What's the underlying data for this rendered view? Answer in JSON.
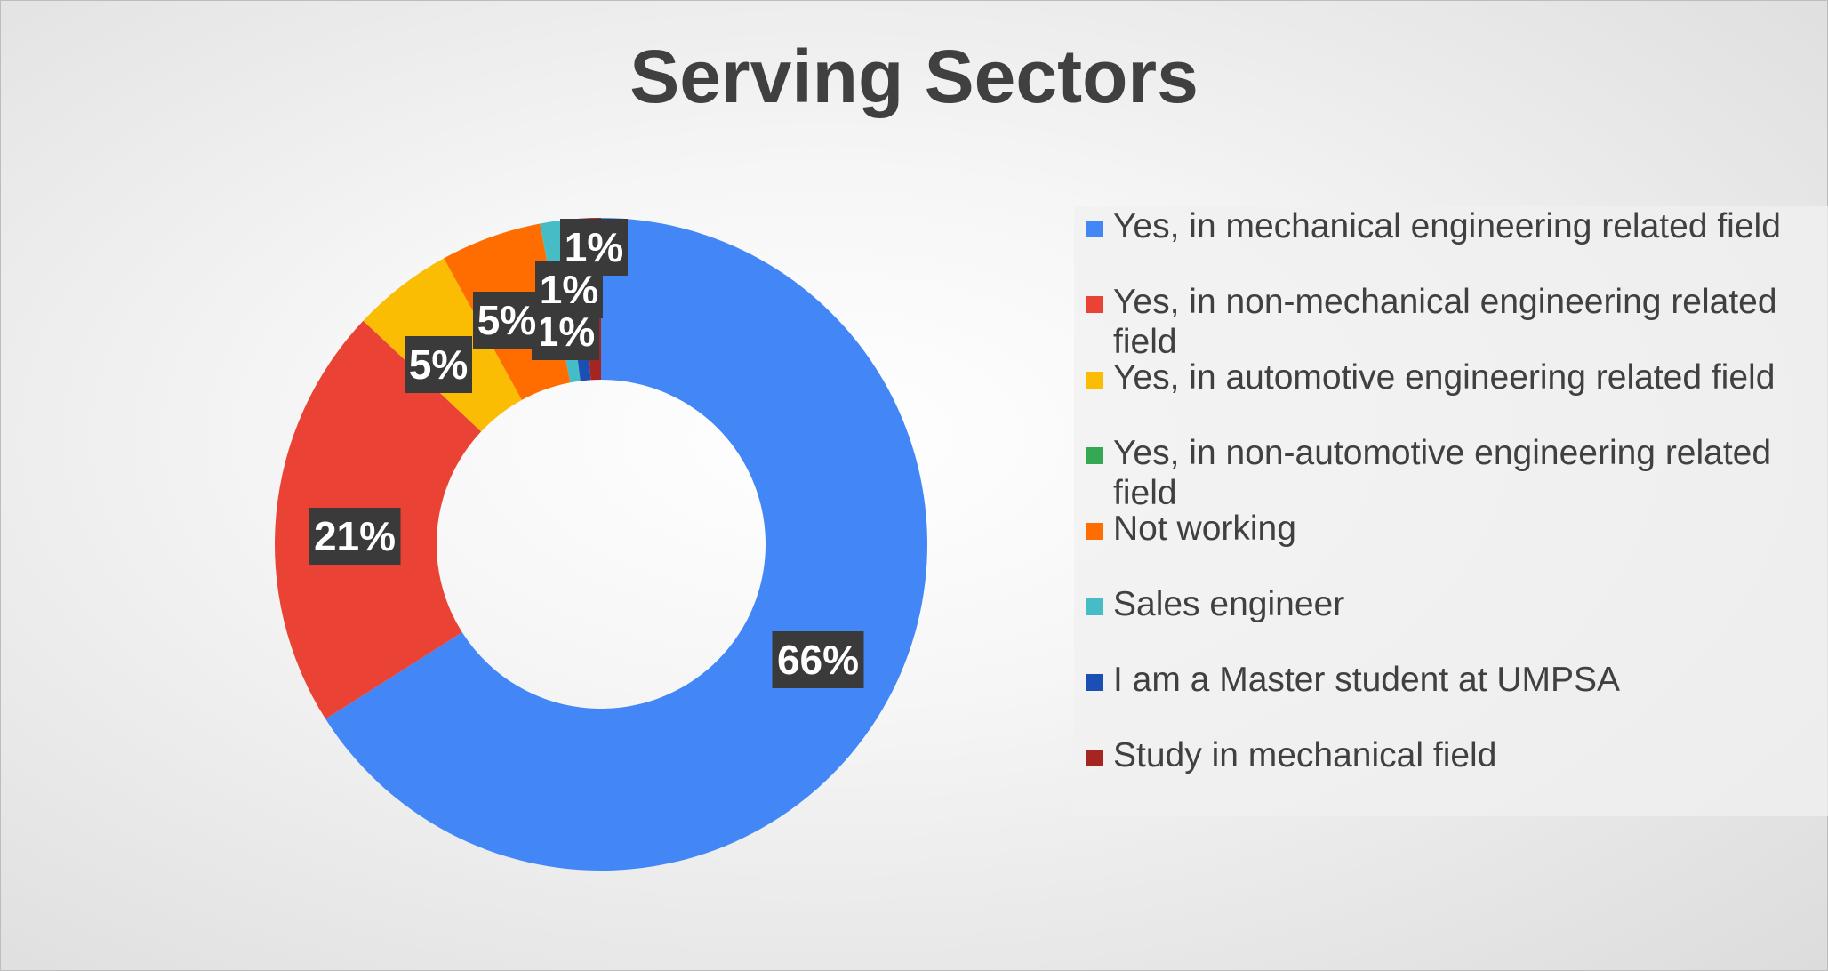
{
  "chart_data": {
    "type": "pie",
    "title": "Serving Sectors",
    "donut": true,
    "legend_position": "right",
    "categories": [
      "Yes, in mechanical engineering related field",
      "Yes, in non-mechanical engineering related field",
      "Yes, in automotive engineering related field",
      "Yes, in non-automotive engineering related field",
      "Not working",
      "Sales engineer",
      "I am a Master student at UMPSA",
      "Study in mechanical field"
    ],
    "values": [
      66,
      21,
      5,
      0,
      5,
      1,
      1,
      1
    ],
    "labels": [
      "66%",
      "21%",
      "5%",
      "",
      "5%",
      "1%",
      "1%",
      "1%"
    ],
    "colors": [
      "#4287f5",
      "#ea4335",
      "#fbbc04",
      "#34a853",
      "#ff6d01",
      "#46bdc6",
      "#1a4fb3",
      "#a52520"
    ]
  }
}
